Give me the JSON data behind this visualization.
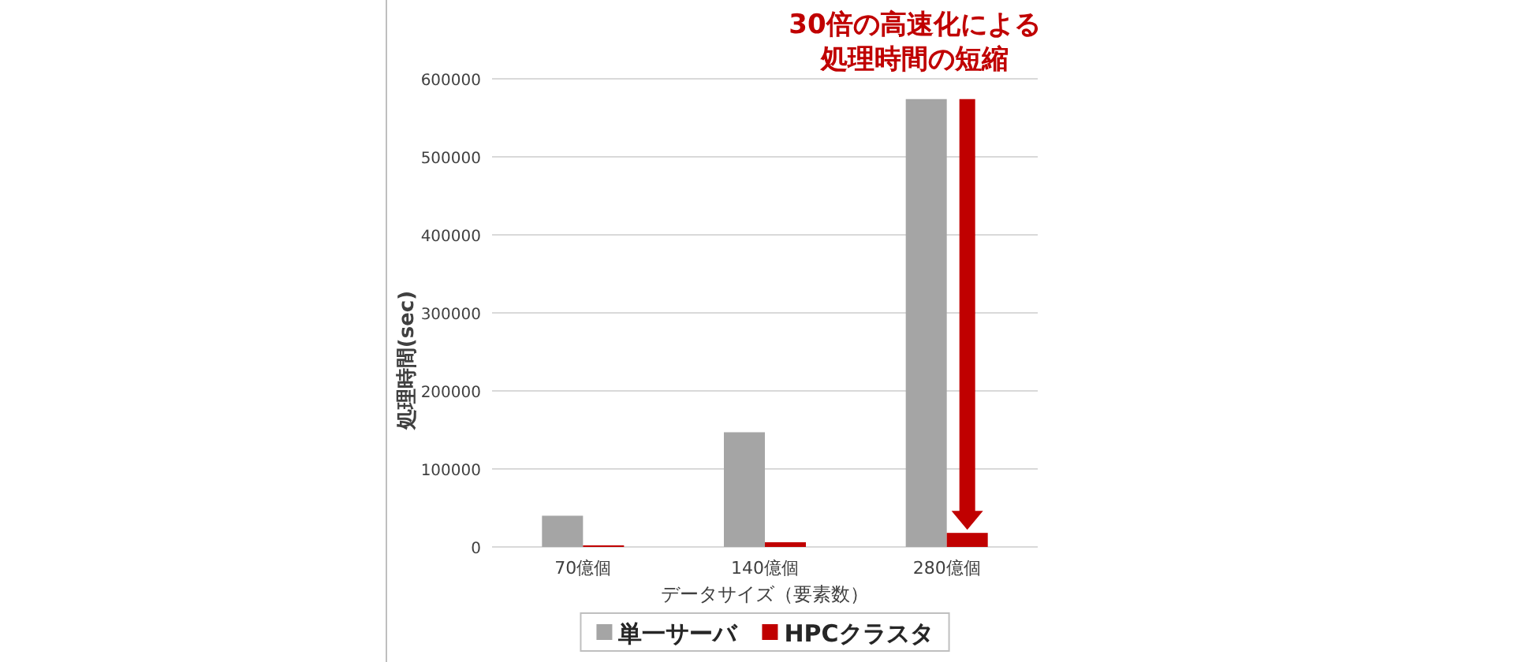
{
  "chart_data": {
    "type": "bar",
    "xlabel": "データサイズ（要素数）",
    "ylabel": "処理時間(sec)",
    "categories": [
      "70億個",
      "140億個",
      "280億個"
    ],
    "series": [
      {
        "name": "単一サーバ",
        "color": "#a5a5a5",
        "values": [
          40000,
          147000,
          574000
        ]
      },
      {
        "name": "HPCクラスタ",
        "color": "#c00000",
        "values": [
          2000,
          6000,
          18000
        ]
      }
    ],
    "ylim": [
      0,
      600000
    ],
    "yticks": [
      0,
      100000,
      200000,
      300000,
      400000,
      500000,
      600000
    ],
    "grid": "y",
    "legend": "bottom",
    "annotations": [
      "30倍の高速化による処理時間の短縮"
    ]
  }
}
